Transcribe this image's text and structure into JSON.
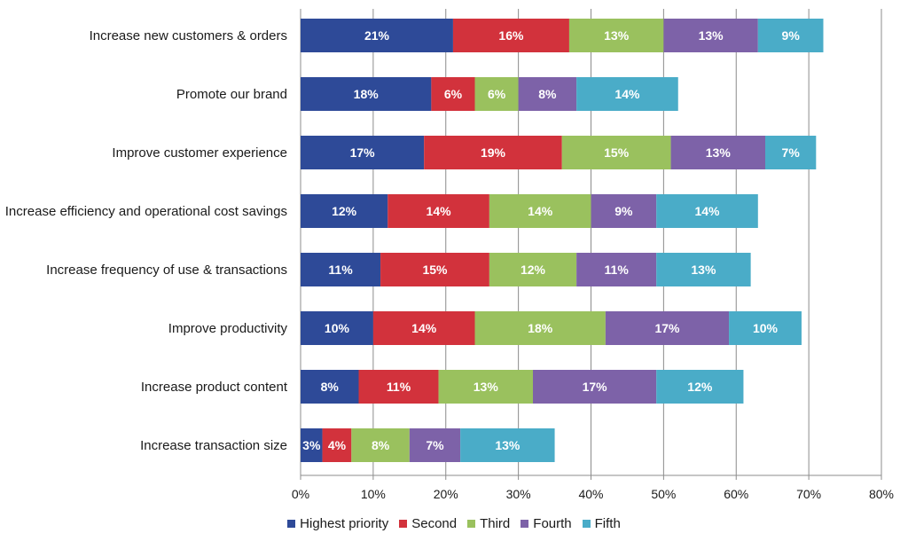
{
  "chart_data": {
    "type": "bar",
    "orientation": "horizontal",
    "stacked": true,
    "categories": [
      "Increase new customers & orders",
      "Promote our brand",
      "Improve customer experience",
      "Increase efficiency and operational cost savings",
      "Increase frequency of use & transactions",
      "Improve productivity",
      "Increase product content",
      "Increase transaction size"
    ],
    "series": [
      {
        "name": "Highest priority",
        "color": "#2e4a98",
        "values": [
          21,
          18,
          17,
          12,
          11,
          10,
          8,
          3
        ],
        "labels": [
          "21%",
          "18%",
          "17%",
          "12%",
          "11%",
          "10%",
          "8%",
          "3%"
        ]
      },
      {
        "name": "Second",
        "color": "#d2323c",
        "values": [
          16,
          6,
          19,
          14,
          15,
          14,
          11,
          4
        ],
        "labels": [
          "16%",
          "6%",
          "19%",
          "14%",
          "15%",
          "14%",
          "11%",
          "4%"
        ]
      },
      {
        "name": "Third",
        "color": "#9ac15e",
        "values": [
          13,
          6,
          15,
          14,
          12,
          18,
          13,
          8
        ],
        "labels": [
          "13%",
          "6%",
          "15%",
          "14%",
          "12%",
          "18%",
          "13%",
          "8%"
        ]
      },
      {
        "name": "Fourth",
        "color": "#7d62a8",
        "values": [
          13,
          8,
          13,
          9,
          11,
          17,
          17,
          7
        ],
        "labels": [
          "13%",
          "8%",
          "13%",
          "9%",
          "11%",
          "17%",
          "17%",
          "7%"
        ]
      },
      {
        "name": "Fifth",
        "color": "#4aacc8",
        "values": [
          9,
          14,
          7,
          14,
          13,
          10,
          12,
          13
        ],
        "labels": [
          "9%",
          "14%",
          "7%",
          "14%",
          "13%",
          "10%",
          "12%",
          "13%"
        ]
      }
    ],
    "xlim": [
      0,
      80
    ],
    "xticks": [
      0,
      10,
      20,
      30,
      40,
      50,
      60,
      70,
      80
    ],
    "xtick_labels": [
      "0%",
      "10%",
      "20%",
      "30%",
      "40%",
      "50%",
      "60%",
      "70%",
      "80%"
    ],
    "grid": true,
    "legend_position": "bottom"
  }
}
